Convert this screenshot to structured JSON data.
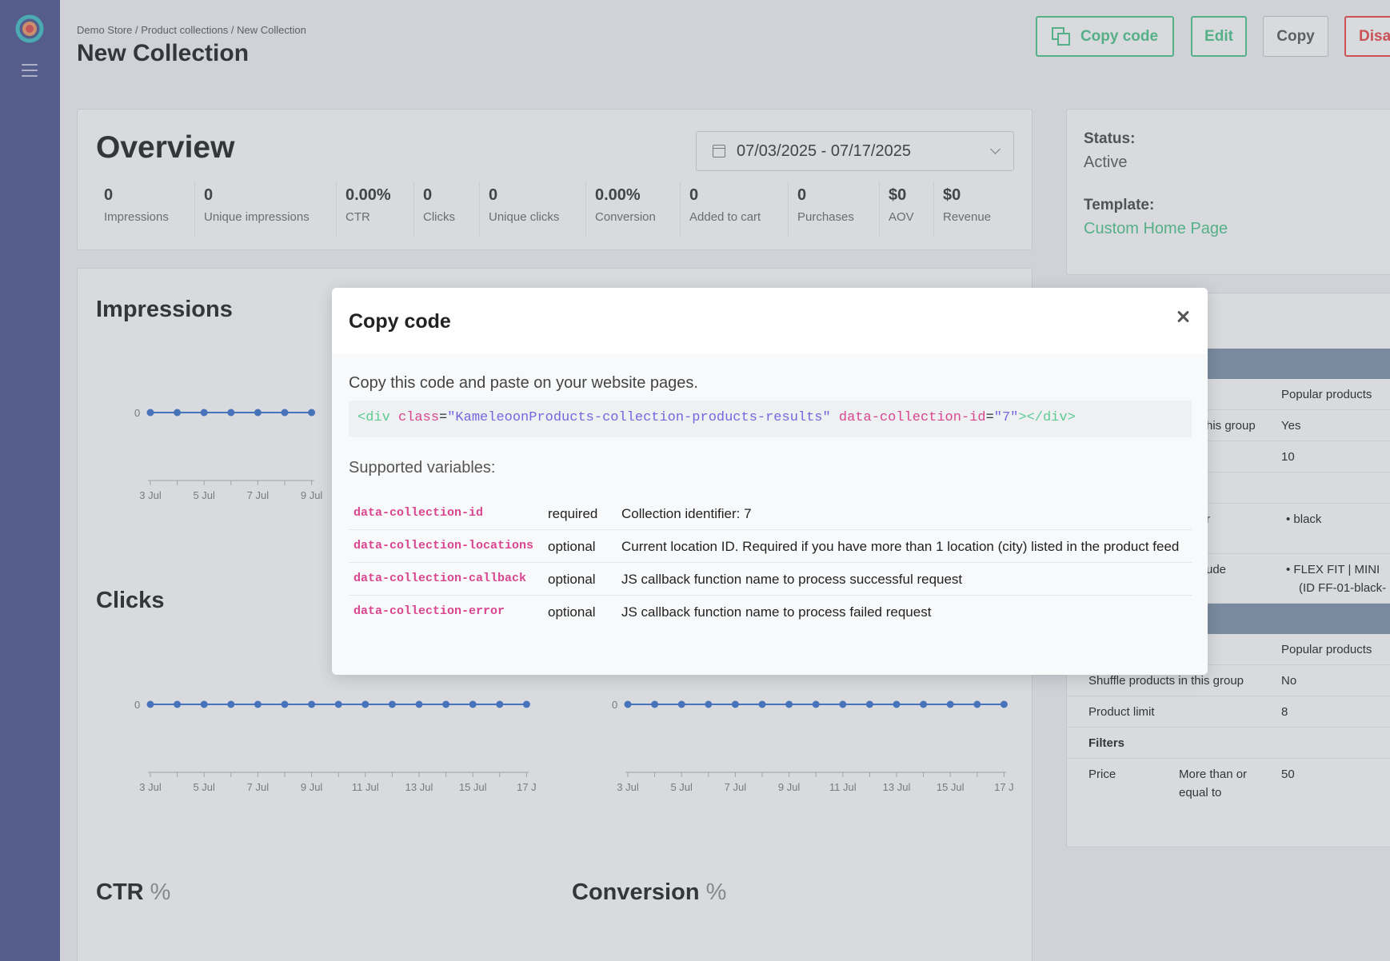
{
  "breadcrumb": "Demo Store / Product collections / New Collection",
  "page_title": "New Collection",
  "header_buttons": {
    "copy_code": "Copy code",
    "edit": "Edit",
    "copy": "Copy",
    "disable": "Disa"
  },
  "overview": {
    "title": "Overview",
    "date_range": "07/03/2025 - 07/17/2025",
    "metrics": [
      {
        "value": "0",
        "label": "Impressions"
      },
      {
        "value": "0",
        "label": "Unique impressions"
      },
      {
        "value": "0.00%",
        "label": "CTR"
      },
      {
        "value": "0",
        "label": "Clicks"
      },
      {
        "value": "0",
        "label": "Unique clicks"
      },
      {
        "value": "0.00%",
        "label": "Conversion"
      },
      {
        "value": "0",
        "label": "Added to cart"
      },
      {
        "value": "0",
        "label": "Purchases"
      },
      {
        "value": "$0",
        "label": "AOV"
      },
      {
        "value": "$0",
        "label": "Revenue"
      }
    ]
  },
  "status_card": {
    "status_label": "Status:",
    "status_value": "Active",
    "template_label": "Template:",
    "template_value": "Custom Home Page"
  },
  "chart_titles": {
    "impressions": "Impressions",
    "clicks": "Clicks",
    "ctr": "CTR",
    "ctr_unit": "%",
    "conversion": "Conversion",
    "conversion_unit": "%"
  },
  "chart_data": [
    {
      "type": "line",
      "x": [
        "3 Jul",
        "4 Jul",
        "5 Jul",
        "6 Jul",
        "7 Jul",
        "8 Jul",
        "9 Jul"
      ],
      "values": [
        0,
        0,
        0,
        0,
        0,
        0,
        0
      ],
      "x_tick_labels": [
        "3 Jul",
        "5 Jul",
        "7 Jul",
        "9 Jul"
      ],
      "y_tick_labels": [
        "0"
      ]
    },
    {
      "type": "line",
      "x": [
        "3 Jul",
        "4 Jul",
        "5 Jul",
        "6 Jul",
        "7 Jul",
        "8 Jul",
        "9 Jul",
        "10 Jul",
        "11 Jul",
        "12 Jul",
        "13 Jul",
        "14 Jul",
        "15 Jul",
        "16 Jul",
        "17 Jul"
      ],
      "values": [
        0,
        0,
        0,
        0,
        0,
        0,
        0,
        0,
        0,
        0,
        0,
        0,
        0,
        0,
        0
      ],
      "x_tick_labels": [
        "3 Jul",
        "5 Jul",
        "7 Jul",
        "9 Jul",
        "11 Jul",
        "13 Jul",
        "15 Jul",
        "17 J"
      ],
      "y_tick_labels": [
        "0"
      ]
    },
    {
      "type": "line",
      "x": [
        "3 Jul",
        "4 Jul",
        "5 Jul",
        "6 Jul",
        "7 Jul",
        "8 Jul",
        "9 Jul",
        "10 Jul",
        "11 Jul",
        "12 Jul",
        "13 Jul",
        "14 Jul",
        "15 Jul",
        "16 Jul",
        "17 Jul"
      ],
      "values": [
        0,
        0,
        0,
        0,
        0,
        0,
        0,
        0,
        0,
        0,
        0,
        0,
        0,
        0,
        0
      ],
      "x_tick_labels": [
        "3 Jul",
        "5 Jul",
        "7 Jul",
        "9 Jul",
        "11 Jul",
        "13 Jul",
        "15 Jul",
        "17 J"
      ],
      "y_tick_labels": [
        "0"
      ]
    }
  ],
  "rules_table": {
    "rows": [
      {
        "c2": "Popular products"
      },
      {
        "c1": "his group",
        "c2": "Yes"
      },
      {
        "c2": "10"
      },
      {
        "c2": ""
      },
      {
        "c1": "r",
        "c2": "• black"
      },
      {
        "c1": "ude",
        "c2": "• FLEX FIT | MINI",
        "c2b": "(ID FF-01-black-"
      },
      {
        "c2": "Popular products"
      },
      {
        "c1": "Shuffle products in this group",
        "c2": "No"
      },
      {
        "c1": "Product limit",
        "c2": "8"
      },
      {
        "c1": "Filters",
        "c2": ""
      },
      {
        "c1": "Price",
        "c1b": "More than or",
        "c1c": "equal to",
        "c2": "50"
      }
    ]
  },
  "modal": {
    "title": "Copy code",
    "description": "Copy this code and paste on your website pages.",
    "code": {
      "open_tag": "<div",
      "attr1": "class",
      "val1": "\"KameleoonProducts-collection-products-results\"",
      "attr2": "data-collection-id",
      "val2": "\"7\"",
      "close_tag": "></div>"
    },
    "supported_label": "Supported variables:",
    "variables": [
      {
        "name": "data-collection-id",
        "req": "required",
        "desc": "Collection identifier: 7"
      },
      {
        "name": "data-collection-locations",
        "req": "optional",
        "desc": "Current location ID. Required if you have more than 1 location (city) listed in the product feed"
      },
      {
        "name": "data-collection-callback",
        "req": "optional",
        "desc": "JS callback function name to process successful request"
      },
      {
        "name": "data-collection-error",
        "req": "optional",
        "desc": "JS callback function name to process failed request"
      }
    ]
  },
  "colors": {
    "sidebar": "#5b6399",
    "accent_green": "#5ccb94",
    "danger": "#ee5555",
    "chart_line": "#4a7fd4",
    "code_attr": "#d9468f",
    "code_string": "#7368e0"
  },
  "icons": {
    "logo": "logo-icon",
    "menu": "hamburger-icon",
    "copy": "copy-icon",
    "calendar": "calendar-icon",
    "close": "close-icon"
  }
}
